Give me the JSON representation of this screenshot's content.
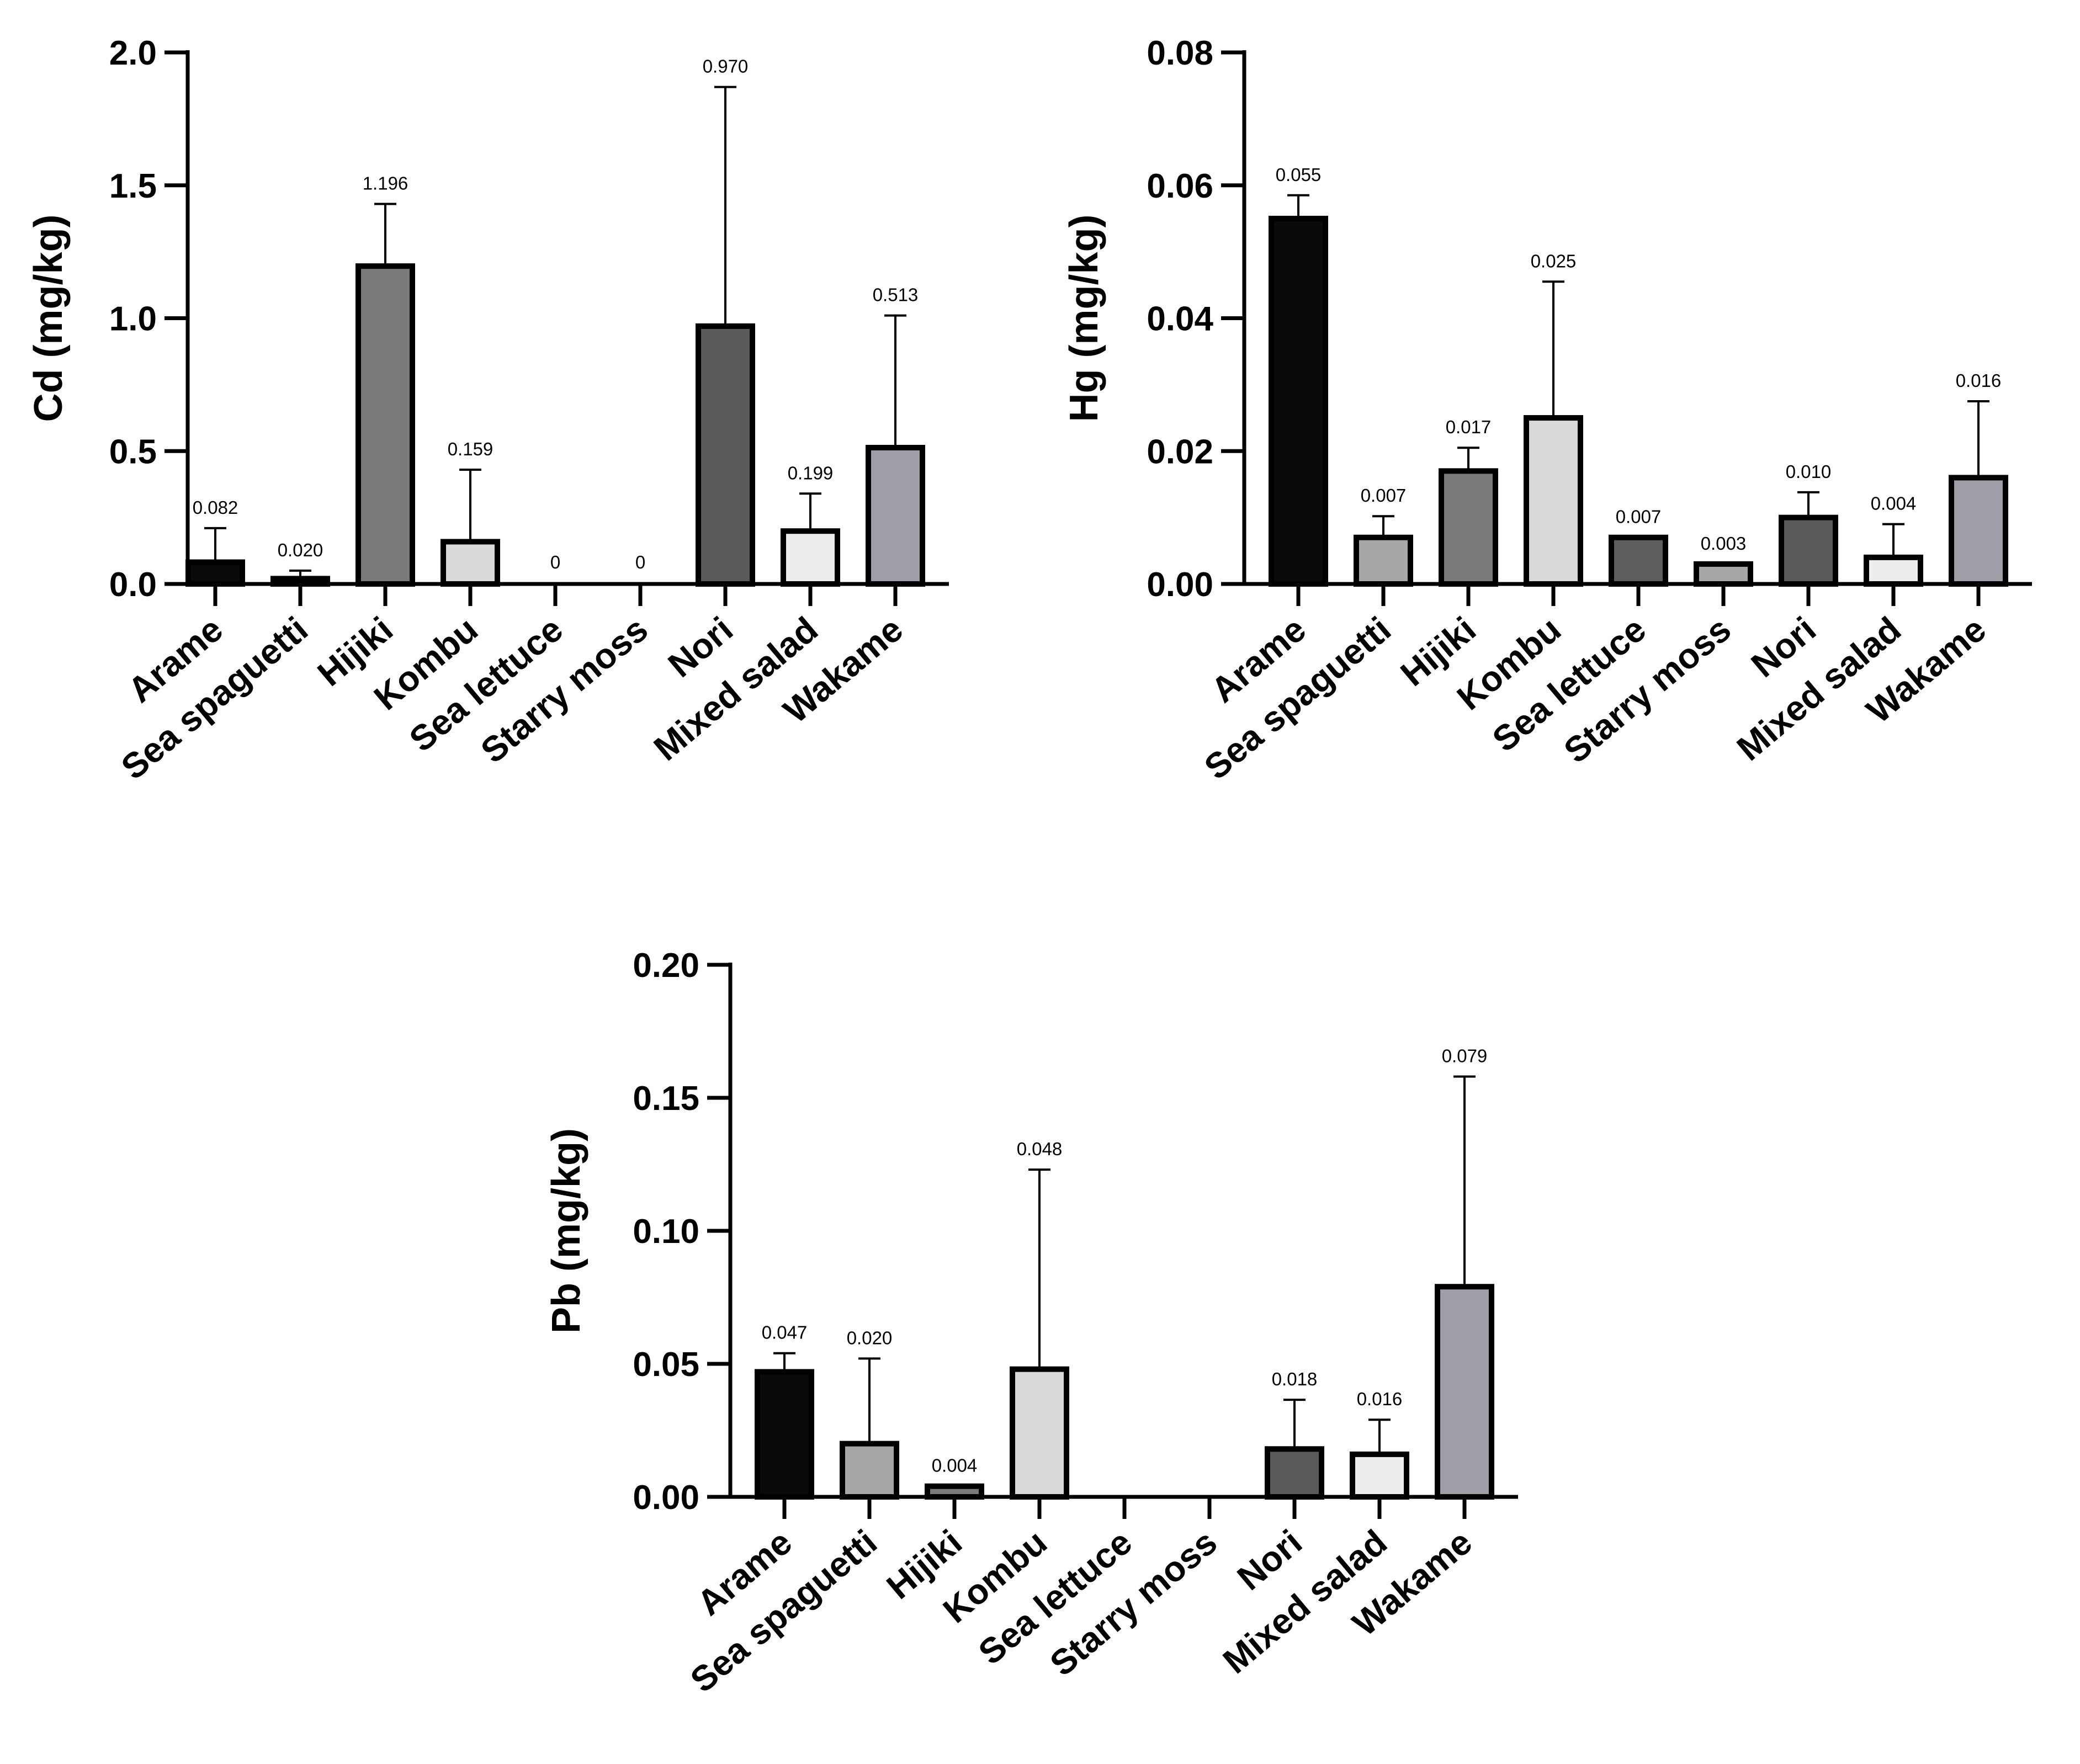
{
  "chart_data": [
    {
      "type": "bar",
      "title": "",
      "xlabel": "",
      "ylabel": "Cd (mg/kg)",
      "ylim": [
        0,
        2.0
      ],
      "yticks": [
        "0.0",
        "0.5",
        "1.0",
        "1.5",
        "2.0"
      ],
      "ytick_values": [
        0,
        0.5,
        1.0,
        1.5,
        2.0
      ],
      "categories": [
        "Arame",
        "Sea spaguetti",
        "Hijiki",
        "Kombu",
        "Sea lettuce",
        "Starry moss",
        "Nori",
        "Mixed salad",
        "Wakame"
      ],
      "values": [
        0.082,
        0.02,
        1.196,
        0.159,
        0,
        0,
        0.97,
        0.199,
        0.513
      ],
      "error_upper": [
        0.21,
        0.05,
        1.43,
        0.43,
        null,
        null,
        1.87,
        0.34,
        1.01
      ],
      "data_labels": [
        "0.082",
        "0.020",
        "1.196",
        "0.159",
        "0",
        "0",
        "0.970",
        "0.199",
        "0.513"
      ],
      "colors": [
        "#0a0a0a",
        "#a7a7a7",
        "#7a7a7a",
        "#d9d9d9",
        "#5e5e5e",
        "#a7a7a7",
        "#5a5a5a",
        "#ededed",
        "#9e9ea6"
      ],
      "grid": false
    },
    {
      "type": "bar",
      "title": "",
      "xlabel": "",
      "ylabel": "Hg (mg/kg)",
      "ylim": [
        0,
        0.08
      ],
      "yticks": [
        "0.00",
        "0.02",
        "0.04",
        "0.06",
        "0.08"
      ],
      "ytick_values": [
        0,
        0.02,
        0.04,
        0.06,
        0.08
      ],
      "categories": [
        "Arame",
        "Sea spaguetti",
        "Hijiki",
        "Kombu",
        "Sea lettuce",
        "Starry moss",
        "Nori",
        "Mixed salad",
        "Wakame"
      ],
      "values": [
        0.055,
        0.007,
        0.017,
        0.025,
        0.007,
        0.003,
        0.01,
        0.004,
        0.016
      ],
      "error_upper": [
        0.0585,
        0.0102,
        0.0205,
        0.0455,
        null,
        null,
        0.0138,
        0.009,
        0.0275
      ],
      "data_labels": [
        "0.055",
        "0.007",
        "0.017",
        "0.025",
        "0.007",
        "0.003",
        "0.010",
        "0.004",
        "0.016"
      ],
      "colors": [
        "#0a0a0a",
        "#a7a7a7",
        "#7a7a7a",
        "#d9d9d9",
        "#5e5e5e",
        "#a7a7a7",
        "#5a5a5a",
        "#ededed",
        "#9e9ea6"
      ],
      "grid": false
    },
    {
      "type": "bar",
      "title": "",
      "xlabel": "",
      "ylabel": "Pb (mg/kg)",
      "ylim": [
        0,
        0.2
      ],
      "yticks": [
        "0.00",
        "0.05",
        "0.10",
        "0.15",
        "0.20"
      ],
      "ytick_values": [
        0,
        0.05,
        0.1,
        0.15,
        0.2
      ],
      "categories": [
        "Arame",
        "Sea spaguetti",
        "Hijiki",
        "Kombu",
        "Sea lettuce",
        "Starry moss",
        "Nori",
        "Mixed salad",
        "Wakame"
      ],
      "values": [
        0.047,
        0.02,
        0.004,
        0.048,
        0,
        0,
        0.018,
        0.016,
        0.079
      ],
      "error_upper": [
        0.054,
        0.052,
        null,
        0.123,
        null,
        null,
        0.0365,
        0.029,
        0.158
      ],
      "data_labels": [
        "0.047",
        "0.020",
        "0.004",
        "0.048",
        null,
        null,
        "0.018",
        "0.016",
        "0.079"
      ],
      "colors": [
        "#0a0a0a",
        "#a7a7a7",
        "#7a7a7a",
        "#d9d9d9",
        "#5e5e5e",
        "#a7a7a7",
        "#5a5a5a",
        "#ededed",
        "#9e9ea6"
      ],
      "grid": false
    }
  ]
}
